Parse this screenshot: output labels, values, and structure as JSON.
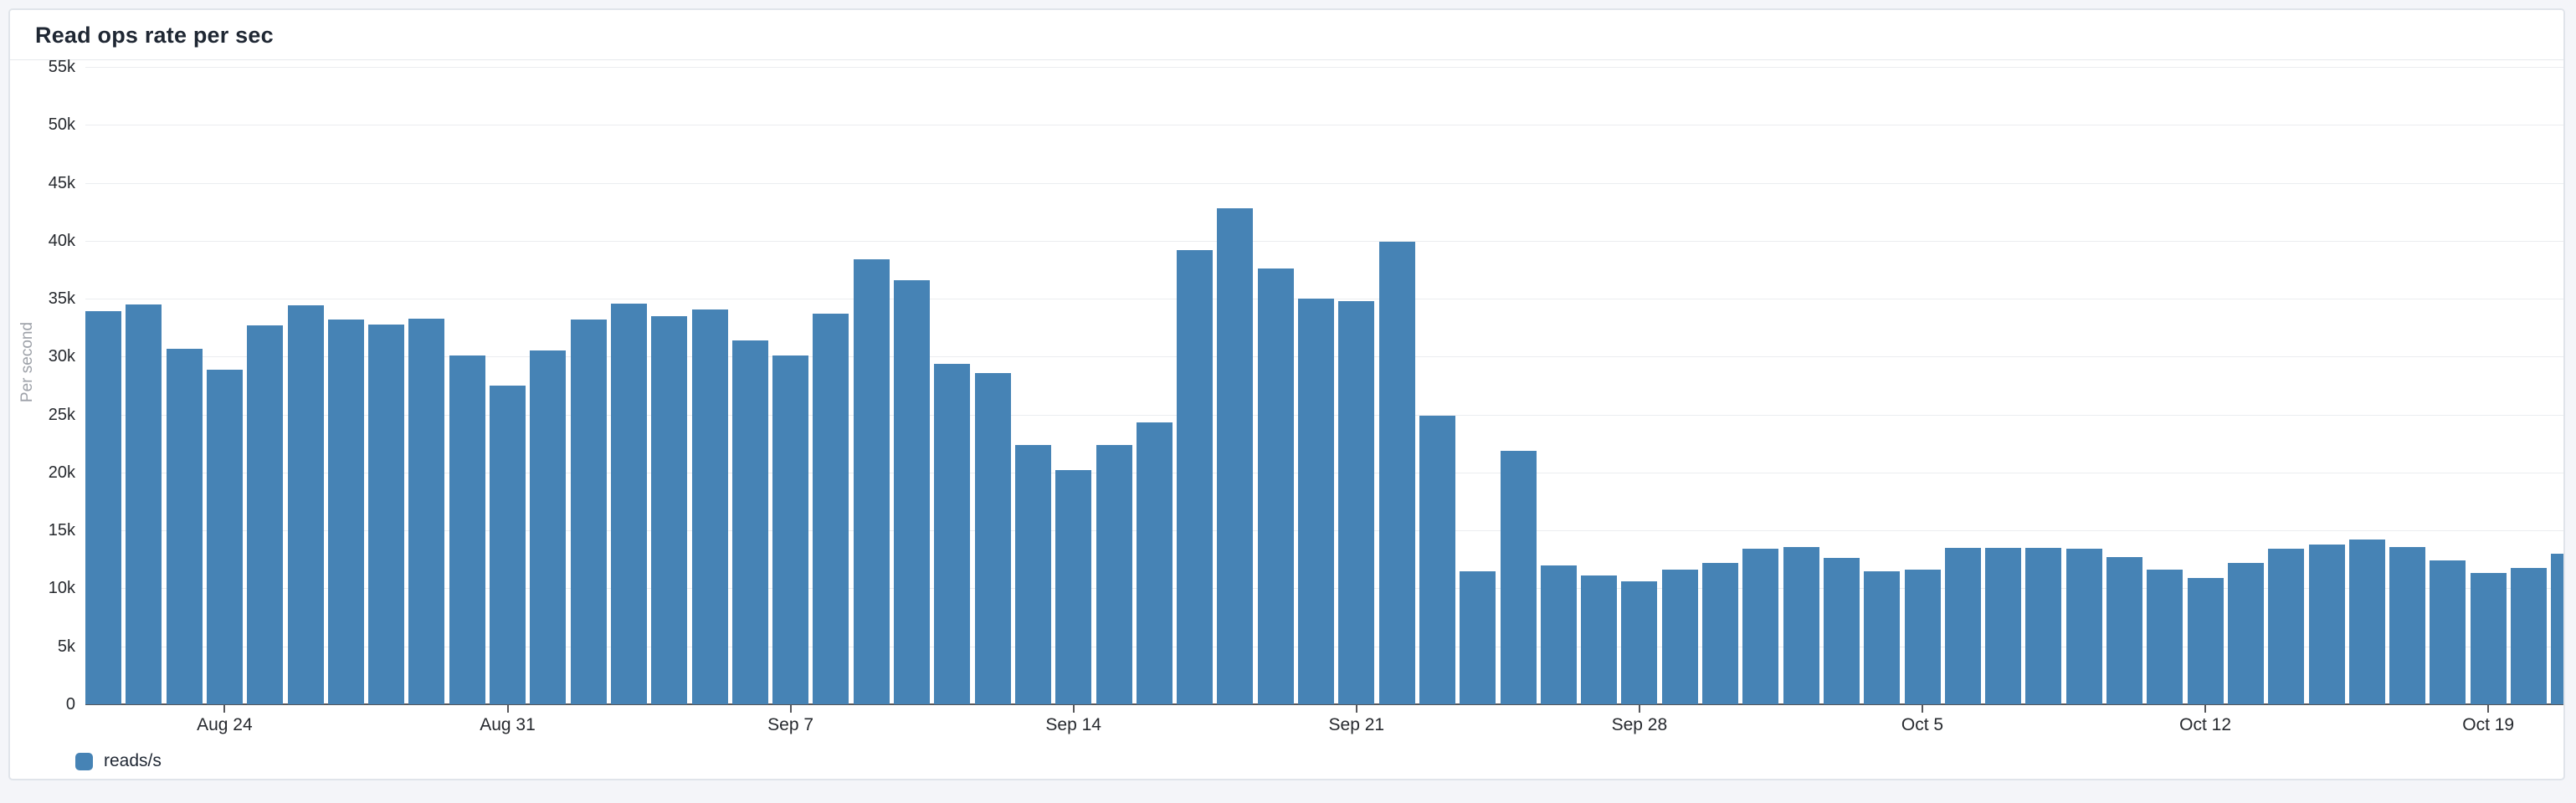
{
  "panel": {
    "title": "Read ops rate per sec"
  },
  "legend": {
    "label": "reads/s"
  },
  "colors": {
    "bar": "#4683b5",
    "panel_background": "#ffffff",
    "page_background": "#f4f5f9",
    "panel_border": "#e0e4ea",
    "gridline": "#ebedf0",
    "axis_line": "#56575b",
    "tick_text": "#26292e",
    "axis_title_text": "#9da1a8",
    "title_text": "#1f2733"
  },
  "chart_data": {
    "type": "bar",
    "title": "Read ops rate per sec",
    "xlabel": "",
    "ylabel": "Per second",
    "ylim": [
      0,
      55000
    ],
    "grid": true,
    "legend_position": "bottom-left",
    "series_name": "reads/s",
    "y_ticks": [
      0,
      5000,
      10000,
      15000,
      20000,
      25000,
      30000,
      35000,
      40000,
      45000,
      50000,
      55000
    ],
    "y_tick_labels": [
      "0",
      "5k",
      "10k",
      "15k",
      "20k",
      "25k",
      "30k",
      "35k",
      "40k",
      "45k",
      "50k",
      "55k"
    ],
    "x_tick_labels": [
      "Aug 24",
      "Aug 31",
      "Sep 7",
      "Sep 14",
      "Sep 21",
      "Sep 28",
      "Oct 5",
      "Oct 12",
      "Oct 19"
    ],
    "x_tick_indices": [
      3,
      10,
      17,
      24,
      31,
      38,
      45,
      52,
      59
    ],
    "categories": [
      "Aug 21",
      "Aug 22",
      "Aug 23",
      "Aug 24",
      "Aug 25",
      "Aug 26",
      "Aug 27",
      "Aug 28",
      "Aug 29",
      "Aug 30",
      "Aug 31",
      "Sep 1",
      "Sep 2",
      "Sep 3",
      "Sep 4",
      "Sep 5",
      "Sep 6",
      "Sep 7",
      "Sep 8",
      "Sep 9",
      "Sep 10",
      "Sep 11",
      "Sep 12",
      "Sep 13",
      "Sep 14",
      "Sep 15",
      "Sep 16",
      "Sep 17",
      "Sep 18",
      "Sep 19",
      "Sep 20",
      "Sep 21",
      "Sep 22",
      "Sep 23",
      "Sep 24",
      "Sep 25",
      "Sep 26",
      "Sep 27",
      "Sep 28",
      "Sep 29",
      "Sep 30",
      "Oct 1",
      "Oct 2",
      "Oct 3",
      "Oct 4",
      "Oct 5",
      "Oct 6",
      "Oct 7",
      "Oct 8",
      "Oct 9",
      "Oct 10",
      "Oct 11",
      "Oct 12",
      "Oct 13",
      "Oct 14",
      "Oct 15",
      "Oct 16",
      "Oct 17",
      "Oct 18",
      "Oct 19",
      "Oct 20",
      "Oct 21"
    ],
    "values": [
      33900,
      34500,
      30700,
      28900,
      32700,
      34400,
      33200,
      32800,
      33300,
      30100,
      27500,
      30500,
      33200,
      34600,
      33500,
      34100,
      31400,
      30100,
      33700,
      38400,
      36600,
      29400,
      28600,
      22400,
      20200,
      22400,
      24300,
      39200,
      42800,
      37600,
      35000,
      34800,
      39900,
      24900,
      11500,
      21900,
      12000,
      11100,
      10600,
      11600,
      12200,
      13400,
      13600,
      12600,
      11500,
      11600,
      13500,
      13500,
      13500,
      13400,
      12700,
      11600,
      10900,
      12200,
      13400,
      13800,
      14200,
      13600,
      12400,
      11300,
      11800,
      13000
    ]
  },
  "layout_note": ""
}
